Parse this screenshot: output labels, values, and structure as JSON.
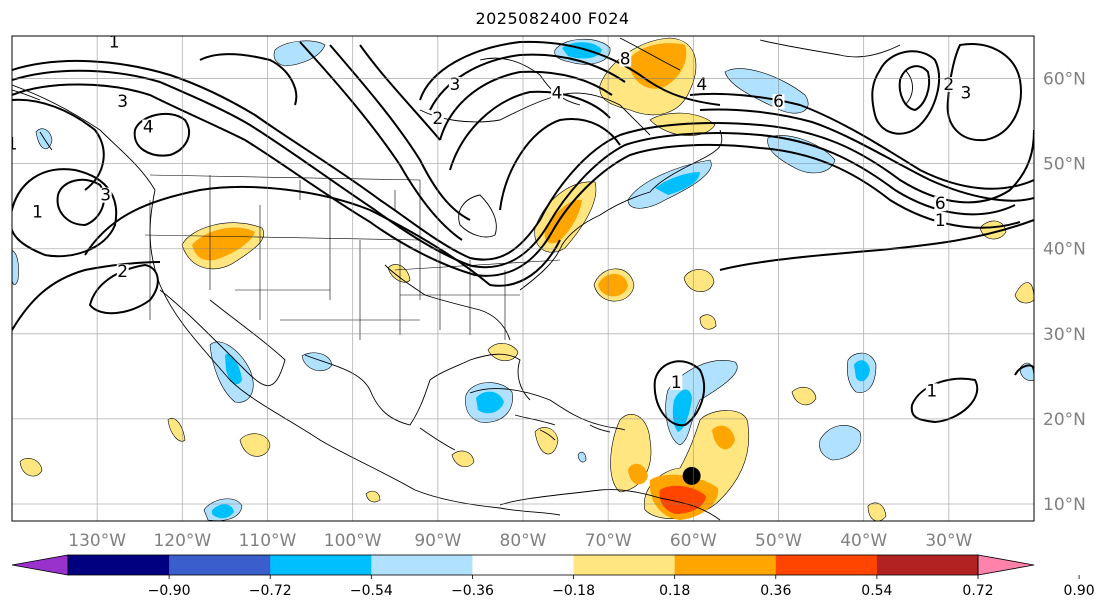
{
  "title": "2025082400 F024",
  "map": {
    "lon_range": [
      -140,
      -20
    ],
    "lat_range": [
      8,
      65
    ],
    "lon_ticks": [
      {
        "lon": -130,
        "label": "130°W"
      },
      {
        "lon": -120,
        "label": "120°W"
      },
      {
        "lon": -110,
        "label": "110°W"
      },
      {
        "lon": -100,
        "label": "100°W"
      },
      {
        "lon": -90,
        "label": "90°W"
      },
      {
        "lon": -80,
        "label": "80°W"
      },
      {
        "lon": -70,
        "label": "70°W"
      },
      {
        "lon": -60,
        "label": "60°W"
      },
      {
        "lon": -50,
        "label": "50°W"
      },
      {
        "lon": -40,
        "label": "40°W"
      },
      {
        "lon": -30,
        "label": "30°W"
      }
    ],
    "lat_ticks": [
      {
        "lat": 60,
        "label": "60°N"
      },
      {
        "lat": 50,
        "label": "50°N"
      },
      {
        "lat": 40,
        "label": "40°N"
      },
      {
        "lat": 30,
        "label": "30°N"
      },
      {
        "lat": 20,
        "label": "20°N"
      },
      {
        "lat": 10,
        "label": "10°N"
      }
    ],
    "contour_labels": [
      {
        "text": "1",
        "lon": -128,
        "lat": 64
      },
      {
        "text": "3",
        "lon": -127,
        "lat": 57
      },
      {
        "text": "4",
        "lon": -124,
        "lat": 54
      },
      {
        "text": "1",
        "lon": -140,
        "lat": 52
      },
      {
        "text": "3",
        "lon": -129,
        "lat": 46
      },
      {
        "text": "1",
        "lon": -137,
        "lat": 44
      },
      {
        "text": "2",
        "lon": -127,
        "lat": 37
      },
      {
        "text": "3",
        "lon": -88,
        "lat": 59
      },
      {
        "text": "2",
        "lon": -90,
        "lat": 55
      },
      {
        "text": "4",
        "lon": -76,
        "lat": 58
      },
      {
        "text": "8",
        "lon": -68,
        "lat": 62
      },
      {
        "text": "4",
        "lon": -59,
        "lat": 59
      },
      {
        "text": "6",
        "lon": -50,
        "lat": 57
      },
      {
        "text": "2",
        "lon": -30,
        "lat": 59
      },
      {
        "text": "3",
        "lon": -28,
        "lat": 58
      },
      {
        "text": "6",
        "lon": -31,
        "lat": 45
      },
      {
        "text": "1",
        "lon": -31,
        "lat": 43
      },
      {
        "text": "1",
        "lon": -62,
        "lat": 24
      },
      {
        "text": "1",
        "lon": -32,
        "lat": 23
      }
    ],
    "storm_center": {
      "lon": -60.2,
      "lat": 13.3
    }
  },
  "colorbar": {
    "colors": [
      "#9932cc",
      "#000080",
      "#3a5fcd",
      "#00bfff",
      "#b0e2ff",
      "#ffffff",
      "#ffe680",
      "#ffa500",
      "#ff4500",
      "#b22222",
      "#ff82ab"
    ],
    "tick_labels": [
      "−0.90",
      "−0.72",
      "−0.54",
      "−0.36",
      "−0.18",
      "0.18",
      "0.36",
      "0.54",
      "0.72",
      "0.90"
    ]
  }
}
